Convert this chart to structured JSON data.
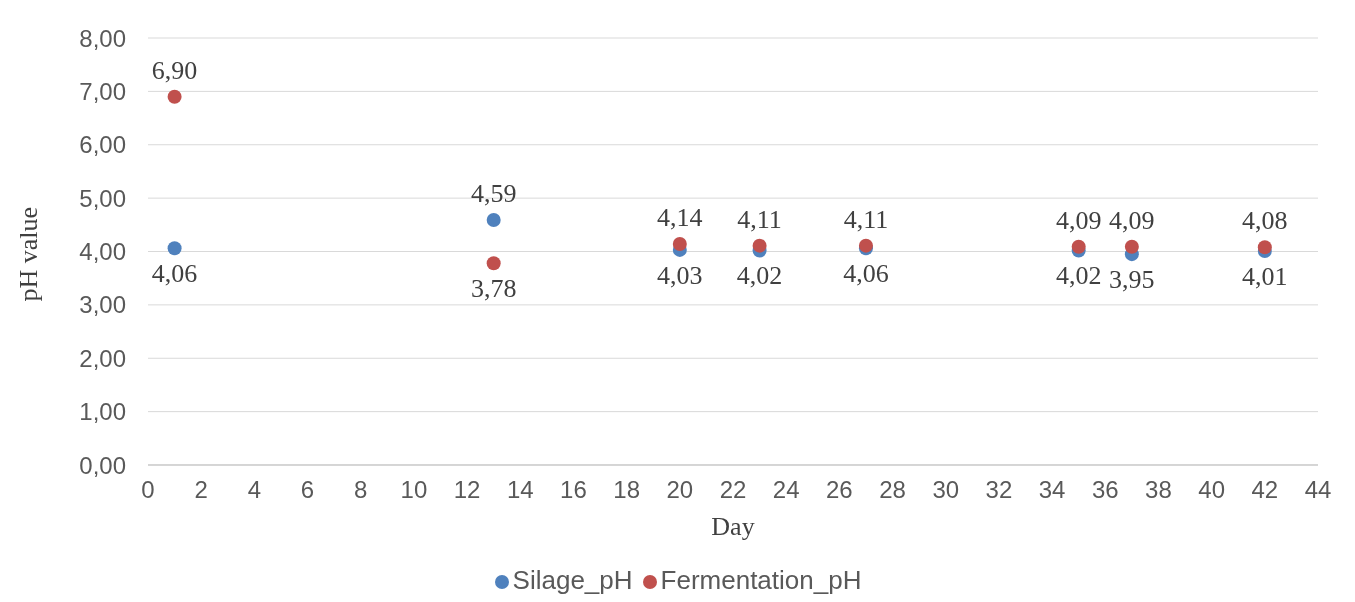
{
  "chart_data": {
    "type": "scatter",
    "xlabel": "Day",
    "ylabel": "pH value",
    "x": [
      1,
      13,
      20,
      23,
      27,
      35,
      37,
      42
    ],
    "series": [
      {
        "name": "Silage_pH",
        "color": "#4f81bd",
        "values": [
          4.06,
          4.59,
          4.03,
          4.02,
          4.06,
          4.02,
          3.95,
          4.01
        ],
        "value_labels": [
          "4,06",
          "4,59",
          "4,03",
          "4,02",
          "4,06",
          "4,02",
          "3,95",
          "4,01"
        ]
      },
      {
        "name": "Fermentation_pH",
        "color": "#c0504d",
        "values": [
          6.9,
          3.78,
          4.14,
          4.11,
          4.11,
          4.09,
          4.09,
          4.08
        ],
        "value_labels": [
          "6,90",
          "3,78",
          "4,14",
          "4,11",
          "4,11",
          "4,09",
          "4,09",
          "4,08"
        ]
      }
    ],
    "xlim": [
      0,
      44
    ],
    "xticks": [
      0,
      2,
      4,
      6,
      8,
      10,
      12,
      14,
      16,
      18,
      20,
      22,
      24,
      26,
      28,
      30,
      32,
      34,
      36,
      38,
      40,
      42,
      44
    ],
    "ylim": [
      0,
      8
    ],
    "yticks": [
      {
        "value": 0,
        "label": "0,00"
      },
      {
        "value": 1,
        "label": "1,00"
      },
      {
        "value": 2,
        "label": "2,00"
      },
      {
        "value": 3,
        "label": "3,00"
      },
      {
        "value": 4,
        "label": "4,00"
      },
      {
        "value": 5,
        "label": "5,00"
      },
      {
        "value": 6,
        "label": "6,00"
      },
      {
        "value": 7,
        "label": "7,00"
      },
      {
        "value": 8,
        "label": "8,00"
      }
    ],
    "grid": "y",
    "legend": "bottom",
    "marker": "circle"
  }
}
